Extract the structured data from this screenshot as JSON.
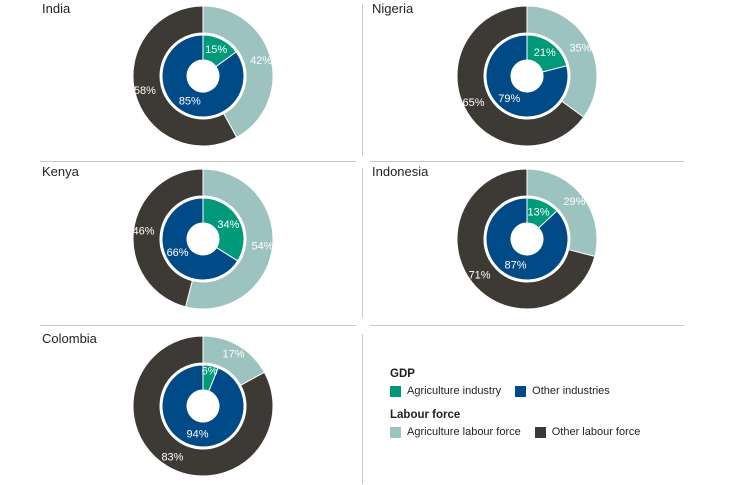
{
  "colors": {
    "agri_gdp": "#009a7a",
    "other_gdp": "#004b87",
    "agri_labour": "#9cc3bf",
    "other_labour": "#3d3935"
  },
  "legend": {
    "gdp_title": "GDP",
    "gdp_agri": "Agriculture industry",
    "gdp_other": "Other industries",
    "labour_title": "Labour force",
    "labour_agri": "Agriculture labour force",
    "labour_other": "Other labour force"
  },
  "chart_data": [
    {
      "type": "pie",
      "country": "India",
      "gdp": {
        "agriculture": 15,
        "other": 85,
        "labels": [
          "15%",
          "85%"
        ]
      },
      "labour": {
        "agriculture": 42,
        "other": 58,
        "labels": [
          "42%",
          "58%"
        ]
      }
    },
    {
      "type": "pie",
      "country": "Nigeria",
      "gdp": {
        "agriculture": 21,
        "other": 79,
        "labels": [
          "21%",
          "79%"
        ]
      },
      "labour": {
        "agriculture": 35,
        "other": 65,
        "labels": [
          "35%",
          "65%"
        ]
      }
    },
    {
      "type": "pie",
      "country": "Kenya",
      "gdp": {
        "agriculture": 34,
        "other": 66,
        "labels": [
          "34%",
          "66%"
        ]
      },
      "labour": {
        "agriculture": 54,
        "other": 46,
        "labels": [
          "54%",
          "46%"
        ]
      }
    },
    {
      "type": "pie",
      "country": "Indonesia",
      "gdp": {
        "agriculture": 13,
        "other": 87,
        "labels": [
          "13%",
          "87%"
        ]
      },
      "labour": {
        "agriculture": 29,
        "other": 71,
        "labels": [
          "29%",
          "71%"
        ]
      }
    },
    {
      "type": "pie",
      "country": "Colombia",
      "gdp": {
        "agriculture": 6,
        "other": 94,
        "labels": [
          "6%",
          "94%"
        ]
      },
      "labour": {
        "agriculture": 17,
        "other": 83,
        "labels": [
          "17%",
          "83%"
        ]
      }
    }
  ]
}
